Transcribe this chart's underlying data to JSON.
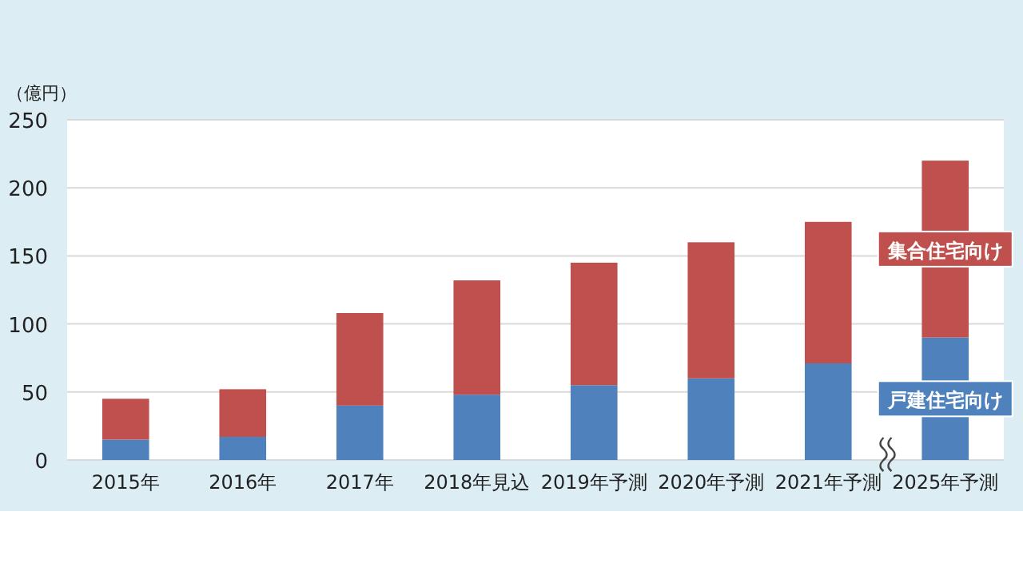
{
  "chart_data": {
    "type": "bar",
    "stacked": true,
    "ylabel": "（億円）",
    "categories": [
      "2015年",
      "2016年",
      "2017年",
      "2018年見込",
      "2019年予測",
      "2020年予測",
      "2021年予測",
      "2025年予測"
    ],
    "series": [
      {
        "name": "戸建住宅向け",
        "color": "#4f81bd",
        "values": [
          15,
          17,
          40,
          48,
          55,
          60,
          71,
          90
        ]
      },
      {
        "name": "集合住宅向け",
        "color": "#c0504d",
        "values": [
          30,
          35,
          68,
          84,
          90,
          100,
          104,
          130
        ]
      }
    ],
    "ylim": [
      0,
      250
    ],
    "yticks": [
      0,
      50,
      100,
      150,
      200,
      250
    ],
    "grid": "y",
    "legend": false
  }
}
